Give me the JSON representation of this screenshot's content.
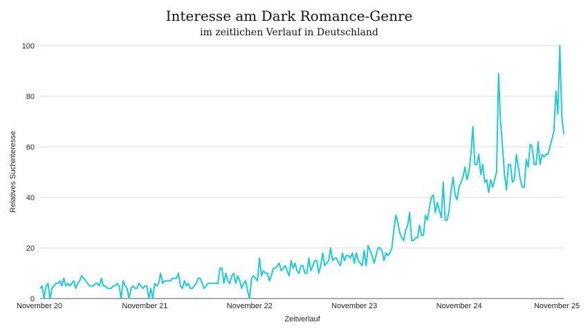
{
  "chart_data": {
    "type": "line",
    "title": "Interesse am Dark Romance-Genre",
    "subtitle": "im zeitlichen Verlauf in Deutschland",
    "xlabel": "Zeitverlauf",
    "ylabel": "Relatives Suchinteresse",
    "ylim": [
      0,
      100
    ],
    "yticks": [
      0,
      20,
      40,
      60,
      80,
      100
    ],
    "xlim": [
      "November 20",
      "November 25"
    ],
    "xtick_labels": [
      "November 20",
      "November 21",
      "November 22",
      "November 23",
      "November 24",
      "November 25"
    ],
    "grid": true,
    "color": "#1ccad8",
    "series": [
      {
        "x_start": "November 20",
        "x_end": "November 25",
        "values": [
          4,
          5,
          0,
          5,
          6,
          0,
          4,
          5,
          6,
          6,
          7,
          5,
          8,
          5,
          6,
          5,
          6,
          7,
          4,
          6,
          7,
          9,
          8,
          7,
          6,
          5,
          5,
          5,
          6,
          6,
          5,
          8,
          5,
          5,
          4,
          4,
          4,
          5,
          5,
          6,
          5,
          0,
          7,
          5,
          4,
          0,
          4,
          5,
          4,
          4,
          6,
          5,
          4,
          5,
          5,
          0,
          4,
          0,
          6,
          5,
          6,
          10,
          6,
          7,
          7,
          7,
          7,
          8,
          8,
          8,
          10,
          5,
          4,
          7,
          5,
          6,
          4,
          4,
          5,
          6,
          8,
          8,
          6,
          4,
          5,
          6,
          6,
          6,
          6,
          6,
          6,
          12,
          12,
          6,
          10,
          7,
          6,
          9,
          10,
          6,
          9,
          7,
          4,
          6,
          7,
          3,
          0,
          8,
          9,
          8,
          7,
          16,
          9,
          11,
          10,
          10,
          7,
          9,
          12,
          12,
          13,
          14,
          11,
          12,
          13,
          11,
          9,
          15,
          12,
          14,
          11,
          10,
          13,
          13,
          10,
          10,
          16,
          11,
          13,
          15,
          15,
          10,
          13,
          18,
          13,
          14,
          15,
          20,
          15,
          16,
          16,
          14,
          13,
          18,
          15,
          17,
          17,
          16,
          18,
          14,
          18,
          15,
          14,
          13,
          19,
          13,
          21,
          19,
          17,
          14,
          17,
          20,
          20,
          19,
          15,
          18,
          17,
          18,
          20,
          27,
          33,
          30,
          26,
          24,
          23,
          27,
          29,
          34,
          23,
          23,
          24,
          24,
          29,
          25,
          25,
          33,
          31,
          36,
          40,
          41,
          34,
          38,
          35,
          32,
          46,
          31,
          31,
          35,
          43,
          48,
          41,
          39,
          44,
          46,
          48,
          52,
          47,
          50,
          57,
          68,
          53,
          53,
          57,
          49,
          53,
          46,
          47,
          42,
          47,
          44,
          47,
          50,
          89,
          70,
          60,
          49,
          43,
          53,
          53,
          46,
          47,
          57,
          52,
          47,
          44,
          44,
          55,
          52,
          61,
          60,
          53,
          53,
          62,
          53,
          57,
          56,
          57,
          57,
          60,
          63,
          66,
          82,
          73,
          100,
          72,
          65
        ]
      }
    ]
  }
}
